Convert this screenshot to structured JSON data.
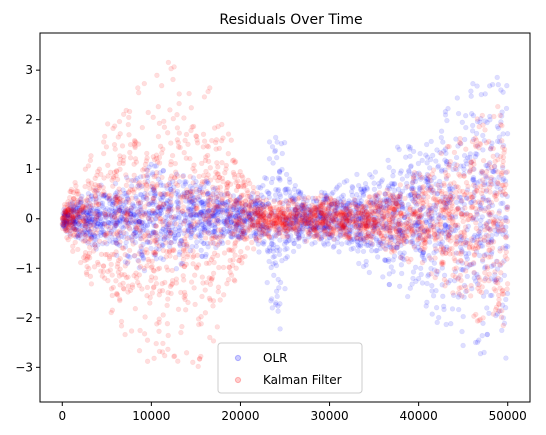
{
  "chart_data": {
    "type": "scatter",
    "title": "Residuals Over Time",
    "xlabel": "",
    "ylabel": "",
    "xlim": [
      -2500,
      52500
    ],
    "ylim": [
      -3.7,
      3.75
    ],
    "x_ticks": [
      0,
      10000,
      20000,
      30000,
      40000,
      50000
    ],
    "x_tick_labels": [
      "0",
      "10000",
      "20000",
      "30000",
      "40000",
      "50000"
    ],
    "y_ticks": [
      -3,
      -2,
      -1,
      0,
      1,
      2,
      3
    ],
    "y_tick_labels": [
      "−3",
      "−2",
      "−1",
      "0",
      "1",
      "2",
      "3"
    ],
    "grid": false,
    "legend_position": "bottom-center",
    "series": [
      {
        "name": "OLR",
        "color": "#0000ff",
        "alpha": 0.08,
        "x_range": [
          0,
          50000
        ],
        "spread_profile": {
          "x": [
            0,
            2000,
            5000,
            8000,
            10000,
            12000,
            15000,
            18000,
            21000,
            22500,
            23500,
            24500,
            25500,
            27000,
            30000,
            33000,
            36000,
            40000,
            44000,
            47000,
            50000
          ],
          "y_spread": [
            0.25,
            0.45,
            0.75,
            0.95,
            1.15,
            1.05,
            0.9,
            0.55,
            0.4,
            0.9,
            1.8,
            2.3,
            0.8,
            0.5,
            0.55,
            0.9,
            1.3,
            1.8,
            2.4,
            2.9,
            3.0
          ]
        }
      },
      {
        "name": "Kalman Filter",
        "color": "#ff0000",
        "alpha": 0.08,
        "x_range": [
          0,
          50000
        ],
        "spread_profile": {
          "x": [
            0,
            2000,
            5000,
            8000,
            10000,
            12000,
            15000,
            18000,
            20000,
            22000,
            24000,
            26000,
            28000,
            30000,
            33000,
            36000,
            40000,
            44000,
            47000,
            50000
          ],
          "y_spread": [
            0.2,
            1.0,
            1.9,
            2.6,
            3.0,
            3.3,
            3.1,
            2.3,
            1.0,
            0.5,
            0.35,
            0.4,
            0.5,
            0.45,
            0.4,
            0.6,
            1.0,
            1.6,
            2.2,
            2.5
          ]
        }
      }
    ]
  }
}
